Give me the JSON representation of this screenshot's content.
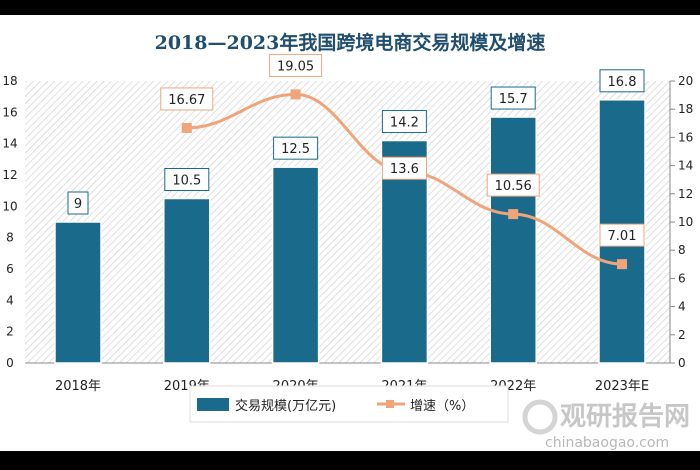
{
  "chart_data": {
    "type": "bar+line",
    "title": "2018—2023年我国跨境电商交易规模及增速",
    "categories": [
      "2018年",
      "2019年",
      "2020年",
      "2021年",
      "2022年",
      "2023年E"
    ],
    "series": [
      {
        "name": "交易规模(万亿元)",
        "type": "bar",
        "axis": "left",
        "values": [
          9,
          10.5,
          12.5,
          14.2,
          15.7,
          16.8
        ],
        "color": "#1a6a8c"
      },
      {
        "name": "增速（%）",
        "type": "line",
        "axis": "right",
        "values": [
          null,
          16.67,
          19.05,
          13.6,
          10.56,
          7.01
        ],
        "color": "#f0a47a"
      }
    ],
    "y_left": {
      "range": [
        0,
        18
      ],
      "ticks": [
        0,
        2,
        4,
        6,
        8,
        10,
        12,
        14,
        16,
        18
      ]
    },
    "y_right": {
      "range": [
        0,
        20
      ],
      "ticks": [
        0,
        2,
        4,
        6,
        8,
        10,
        12,
        14,
        16,
        18,
        20
      ]
    },
    "legend": "bottom",
    "grid": false
  },
  "watermark": {
    "cn": "观研报告网",
    "en": "chinabaogao.com"
  }
}
